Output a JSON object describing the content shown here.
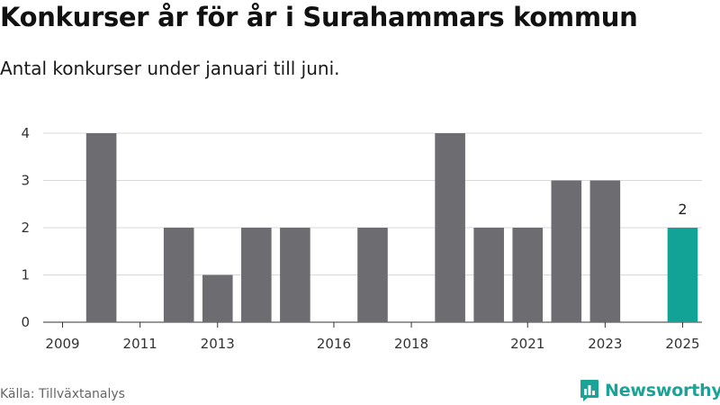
{
  "header": {
    "title": "Konkurser år för år i Surahammars kommun",
    "subtitle": "Antal konkurser under januari till juni."
  },
  "footer": {
    "source": "Källa: Tillväxtanalys",
    "brand": "Newsworthy",
    "brand_icon": "newsworthy-logo-icon"
  },
  "colors": {
    "bar": "#6d6c70",
    "highlight": "#12a396",
    "grid": "#d9d9d9",
    "brand": "#1aa396"
  },
  "chart_data": {
    "type": "bar",
    "categories": [
      "2009",
      "2010",
      "2011",
      "2012",
      "2013",
      "2014",
      "2015",
      "2016",
      "2017",
      "2018",
      "2019",
      "2020",
      "2021",
      "2022",
      "2023",
      "2024",
      "2025"
    ],
    "values": [
      0,
      4,
      0,
      2,
      1,
      2,
      2,
      0,
      2,
      0,
      4,
      2,
      2,
      3,
      3,
      0,
      2
    ],
    "x_tick_labels": [
      "2009",
      "2011",
      "2013",
      "2016",
      "2018",
      "2021",
      "2023",
      "2025"
    ],
    "y_ticks": [
      0,
      1,
      2,
      3,
      4
    ],
    "ylim": [
      0,
      4
    ],
    "highlight_category": "2025",
    "data_labels": [
      {
        "category": "2025",
        "text": "2"
      }
    ],
    "grid": true,
    "legend": "none"
  }
}
